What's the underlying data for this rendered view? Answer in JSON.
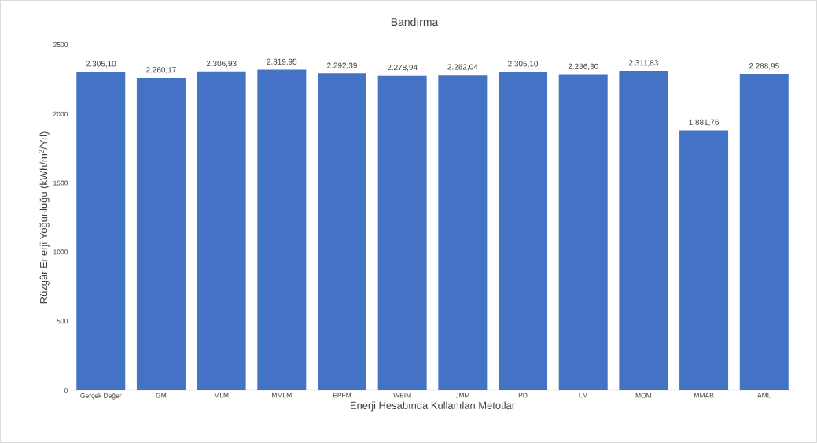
{
  "chart_data": {
    "type": "bar",
    "title": "Bandırma",
    "xlabel": "Enerji Hesabında Kullanılan Metotlar",
    "ylabel": "Rüzgâr Enerji Yoğunluğu (kWh/m$^{2}$/Yıl)",
    "categories": [
      "Gerçek Değer",
      "GM",
      "MLM",
      "MMLM",
      "EPFM",
      "WEIM",
      "JMM",
      "PD",
      "LM",
      "MOM",
      "MMAB",
      "AML"
    ],
    "values": [
      2305.1,
      2260.17,
      2306.93,
      2319.95,
      2292.39,
      2278.94,
      2282.04,
      2305.1,
      2286.3,
      2311.83,
      1881.76,
      2288.95
    ],
    "value_labels": [
      "2.305,10",
      "2.260,17",
      "2.306,93",
      "2.319,95",
      "2.292,39",
      "2.278,94",
      "2.282,04",
      "2.305,10",
      "2.286,30",
      "2.311,83",
      "1.881,76",
      "2.288,95"
    ],
    "color": "#4472c4",
    "ylim": [
      0,
      2500
    ],
    "yticks": [
      0,
      500,
      1000,
      1500,
      2000,
      2500
    ]
  }
}
